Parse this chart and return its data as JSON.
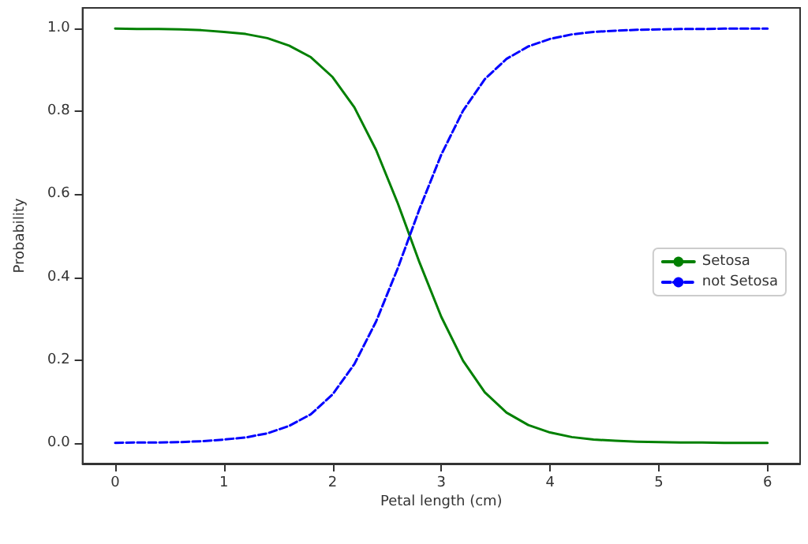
{
  "chart_data": {
    "type": "line",
    "xlabel": "Petal length (cm)",
    "ylabel": "Probability",
    "x": [
      0,
      0.2,
      0.4,
      0.6,
      0.8,
      1.0,
      1.2,
      1.4,
      1.6,
      1.8,
      2.0,
      2.2,
      2.4,
      2.6,
      2.8,
      3.0,
      3.2,
      3.4,
      3.6,
      3.8,
      4.0,
      4.2,
      4.4,
      4.6,
      4.8,
      5.0,
      5.2,
      5.4,
      5.6,
      5.8,
      6.0
    ],
    "series": [
      {
        "name": "Setosa",
        "color": "#008000",
        "line_style": "solid",
        "values": [
          1.0,
          0.999,
          0.999,
          0.998,
          0.996,
          0.992,
          0.987,
          0.977,
          0.959,
          0.931,
          0.883,
          0.81,
          0.707,
          0.578,
          0.435,
          0.304,
          0.198,
          0.122,
          0.073,
          0.043,
          0.025,
          0.014,
          0.008,
          0.005,
          0.003,
          0.002,
          0.001,
          0.001,
          0.0,
          0.0,
          0.0
        ]
      },
      {
        "name": "not Setosa",
        "color": "#0000ff",
        "line_style": "dashed",
        "values": [
          0.0,
          0.001,
          0.001,
          0.002,
          0.004,
          0.008,
          0.013,
          0.023,
          0.041,
          0.069,
          0.117,
          0.19,
          0.293,
          0.422,
          0.565,
          0.696,
          0.802,
          0.878,
          0.927,
          0.957,
          0.975,
          0.986,
          0.992,
          0.995,
          0.997,
          0.998,
          0.999,
          0.999,
          1.0,
          1.0,
          1.0
        ]
      }
    ],
    "xlim": [
      -0.3,
      6.3
    ],
    "xticks": [
      0,
      1,
      2,
      3,
      4,
      5,
      6
    ],
    "ylim": [
      -0.05,
      1.05
    ],
    "yticks": [
      {
        "value": 0,
        "label": "0.0"
      },
      0.2,
      0.4,
      0.6,
      0.8,
      {
        "value": 1,
        "label": "1.0"
      }
    ],
    "grid": false,
    "legend": "right",
    "marker": "none"
  }
}
